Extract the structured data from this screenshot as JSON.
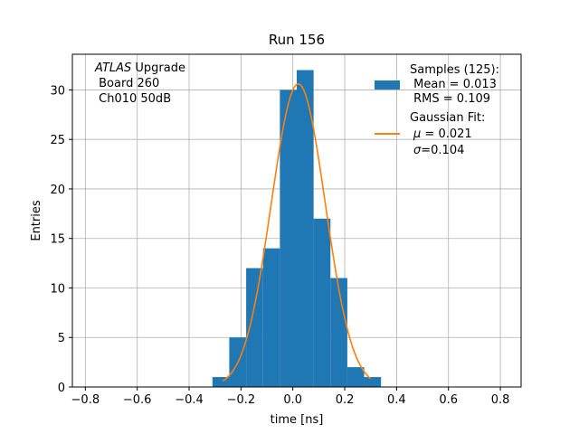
{
  "chart_data": {
    "type": "bar",
    "title": "Run 156",
    "xlabel": "time [ns]",
    "ylabel": "Entries",
    "xlim": [
      -0.85,
      0.88
    ],
    "ylim": [
      0,
      33.6
    ],
    "grid": true,
    "legend_position": "top-right",
    "xticks": [
      -0.8,
      -0.6,
      -0.4,
      -0.2,
      0.0,
      0.2,
      0.4,
      0.6,
      0.8
    ],
    "xtick_labels": [
      "−0.8",
      "−0.6",
      "−0.4",
      "−0.2",
      "0.0",
      "0.2",
      "0.4",
      "0.6",
      "0.8"
    ],
    "yticks": [
      0,
      5,
      10,
      15,
      20,
      25,
      30
    ],
    "ytick_labels": [
      "0",
      "5",
      "10",
      "15",
      "20",
      "25",
      "30"
    ],
    "histogram": {
      "bin_edges": [
        -0.31,
        -0.245,
        -0.18,
        -0.115,
        -0.05,
        0.015,
        0.08,
        0.145,
        0.21,
        0.275,
        0.34
      ],
      "counts": [
        1,
        5,
        12,
        14,
        30,
        32,
        17,
        11,
        2,
        1
      ],
      "color": "#1f77b4"
    },
    "fit": {
      "type": "gaussian",
      "amplitude": 30.6,
      "mu": 0.021,
      "sigma": 0.104,
      "x_range": [
        -0.27,
        0.3
      ],
      "color": "#ff7f0e"
    },
    "annotation": {
      "italic": "ATLAS",
      "rest": " Upgrade",
      "line2": " Board 260",
      "line3": " Ch010 50dB"
    },
    "legend": {
      "samples": {
        "line1": "Samples (125):",
        "line2": " Mean = 0.013",
        "line3": " RMS = 0.109"
      },
      "fit": {
        "line1": "Gaussian Fit:",
        "mu_symbol": "μ",
        "mu_text": " = 0.021",
        "sigma_symbol": "σ",
        "sigma_text": "=0.104"
      }
    }
  }
}
